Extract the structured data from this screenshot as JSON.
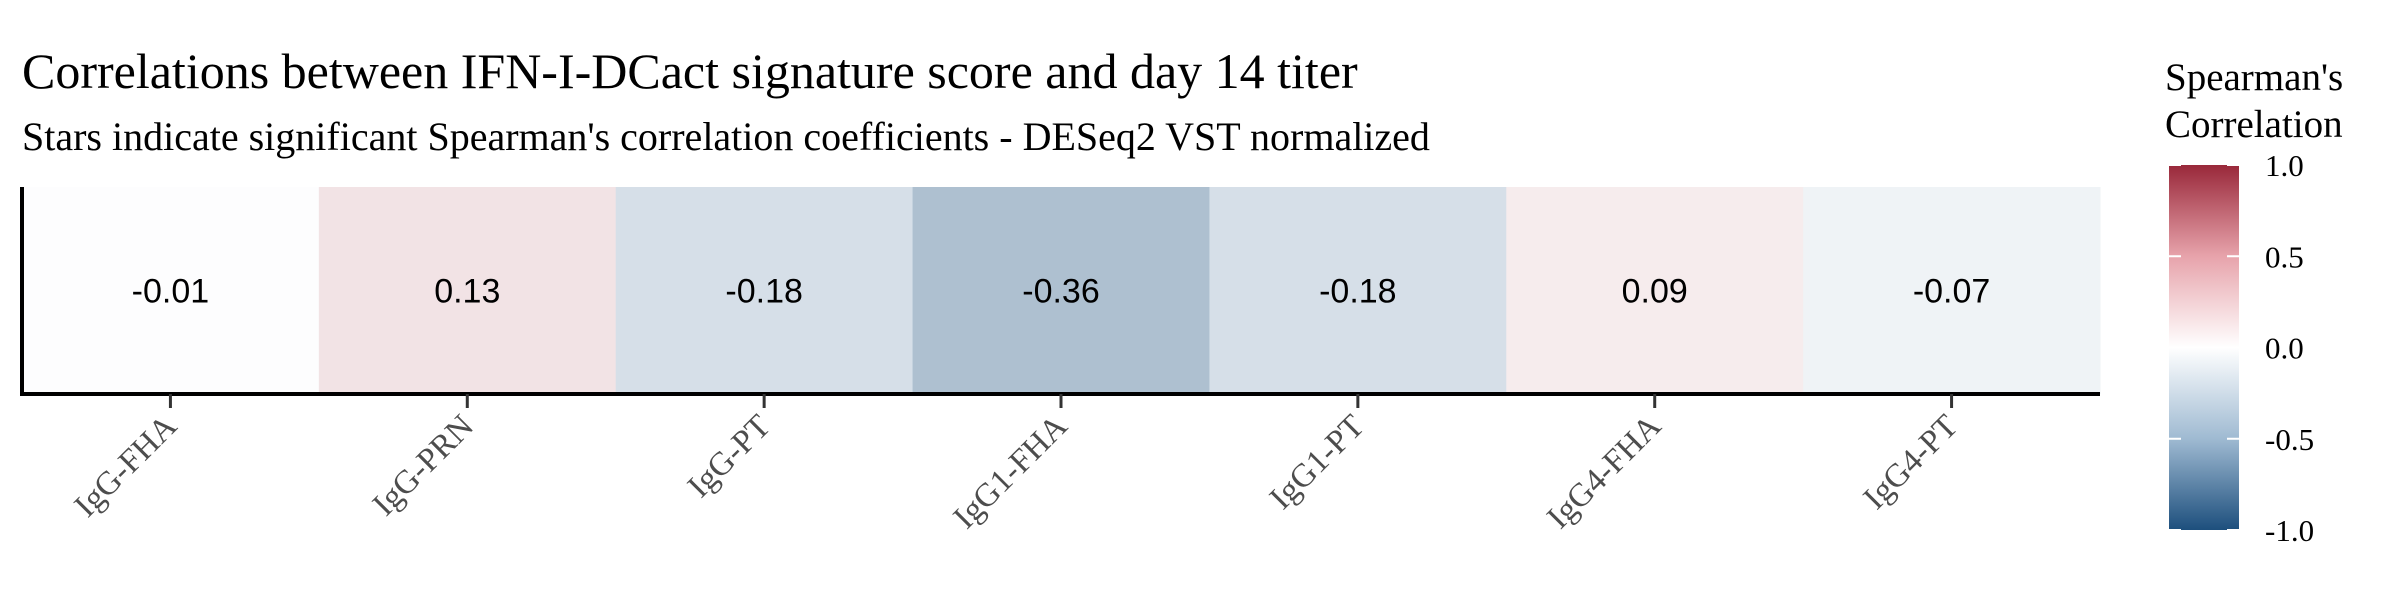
{
  "chart_data": {
    "type": "heatmap",
    "title": "Correlations between IFN-I-DCact signature score and day 14 titer",
    "subtitle": "Stars indicate significant Spearman's correlation coefficients - DESeq2 VST normalized",
    "categories": [
      "IgG-FHA",
      "IgG-PRN",
      "IgG-PT",
      "IgG1-FHA",
      "IgG1-PT",
      "IgG4-FHA",
      "IgG4-PT"
    ],
    "values": [
      -0.01,
      0.13,
      -0.18,
      -0.36,
      -0.18,
      0.09,
      -0.07
    ],
    "value_labels": [
      "-0.01",
      "0.13",
      "-0.18",
      "-0.36",
      "-0.18",
      "0.09",
      "-0.07"
    ],
    "legend": {
      "title_line1": "Spearman's",
      "title_line2": "Correlation",
      "range": [
        -1.0,
        1.0
      ],
      "ticks": [
        1.0,
        0.5,
        0.0,
        -0.5,
        -1.0
      ],
      "tick_labels": [
        "1.0",
        "0.5",
        "0.0",
        "-0.5",
        "-1.0"
      ],
      "placement": "right",
      "colors": {
        "low": "#1d4f7d",
        "mid": "#ffffff",
        "high": "#99283a"
      }
    },
    "xlabel": "",
    "ylabel": "",
    "grid": false
  }
}
